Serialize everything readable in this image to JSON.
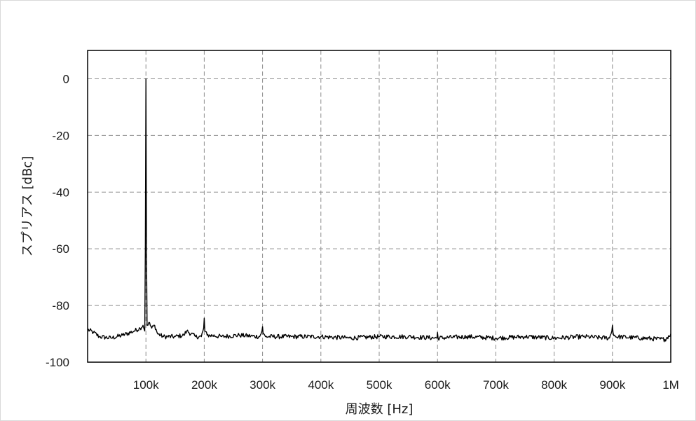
{
  "chart_data": {
    "type": "line",
    "title": "",
    "xlabel": "周波数 [Hz]",
    "ylabel": "スプリアス [dBc]",
    "xlim": [
      0,
      1000000
    ],
    "ylim": [
      -100,
      10
    ],
    "x_ticks": [
      {
        "value": 100000,
        "label": "100k"
      },
      {
        "value": 200000,
        "label": "200k"
      },
      {
        "value": 300000,
        "label": "300k"
      },
      {
        "value": 400000,
        "label": "400k"
      },
      {
        "value": 500000,
        "label": "500k"
      },
      {
        "value": 600000,
        "label": "600k"
      },
      {
        "value": 700000,
        "label": "700k"
      },
      {
        "value": 800000,
        "label": "800k"
      },
      {
        "value": 900000,
        "label": "900k"
      },
      {
        "value": 1000000,
        "label": "1M"
      }
    ],
    "y_ticks": [
      {
        "value": 0,
        "label": "0"
      },
      {
        "value": -20,
        "label": "-20"
      },
      {
        "value": -40,
        "label": "-40"
      },
      {
        "value": -60,
        "label": "-60"
      },
      {
        "value": -80,
        "label": "-80"
      },
      {
        "value": -100,
        "label": "-100"
      }
    ],
    "grid": true,
    "grid_style": "dashed",
    "legend": "none",
    "series": [
      {
        "color": "#000000",
        "noise_floor": -91,
        "x": [
          0,
          10000,
          20000,
          40000,
          60000,
          80000,
          90000,
          95000,
          98000,
          99000,
          100000,
          101000,
          102000,
          105000,
          110000,
          115000,
          120000,
          130000,
          150000,
          165000,
          170000,
          185000,
          195000,
          199000,
          200000,
          201000,
          205000,
          210000,
          230000,
          260000,
          295000,
          299000,
          300000,
          301000,
          305000,
          350000,
          400000,
          450000,
          500000,
          550000,
          599000,
          600000,
          601000,
          650000,
          700000,
          750000,
          800000,
          850000,
          895000,
          899000,
          900000,
          901000,
          905000,
          950000,
          990000,
          1000000
        ],
        "y": [
          -88.5,
          -89.5,
          -91,
          -91.5,
          -90.5,
          -89,
          -88,
          -87,
          -89,
          -60,
          0,
          -62,
          -87,
          -86,
          -88,
          -87,
          -90,
          -91,
          -91,
          -90.5,
          -89,
          -91,
          -91,
          -88,
          -84.5,
          -89,
          -90.5,
          -90.5,
          -91,
          -90.5,
          -91,
          -89,
          -87.5,
          -90,
          -91,
          -91,
          -91,
          -91.5,
          -91,
          -91,
          -91.5,
          -89.5,
          -91.5,
          -91,
          -91.5,
          -91,
          -91.5,
          -91,
          -91.5,
          -89,
          -87,
          -89.5,
          -91,
          -91.5,
          -92,
          -90
        ]
      }
    ]
  }
}
